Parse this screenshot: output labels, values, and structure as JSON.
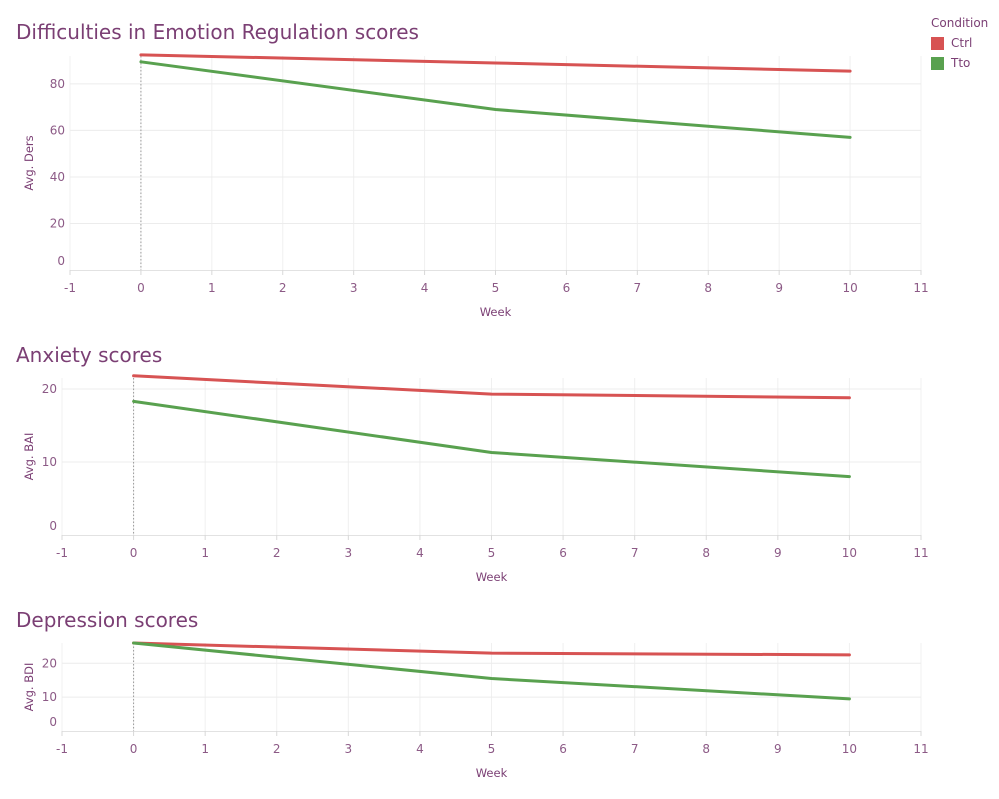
{
  "legend": {
    "title": "Condition",
    "items": [
      {
        "label": "Ctrl",
        "color": "#d75353"
      },
      {
        "label": "Tto",
        "color": "#59a14f"
      }
    ]
  },
  "chart_data": [
    {
      "type": "line",
      "title": "Difficulties in Emotion Regulation scores",
      "xlabel": "Week",
      "ylabel": "Avg. Ders",
      "xlim": [
        -1,
        11
      ],
      "ylim": [
        0,
        92
      ],
      "x_ticks": [
        -1,
        0,
        1,
        2,
        3,
        4,
        5,
        6,
        7,
        8,
        9,
        10,
        11
      ],
      "y_ticks": [
        0,
        20,
        40,
        60,
        80
      ],
      "grid": true,
      "reference_line_x": 0,
      "series": [
        {
          "name": "Ctrl",
          "color": "#d75353",
          "x": [
            0,
            5,
            10
          ],
          "y": [
            92.5,
            89,
            85.5
          ]
        },
        {
          "name": "Tto",
          "color": "#59a14f",
          "x": [
            0,
            5,
            10
          ],
          "y": [
            89.5,
            69,
            57
          ]
        }
      ]
    },
    {
      "type": "line",
      "title": "Anxiety scores",
      "xlabel": "Week",
      "ylabel": "Avg. BAI",
      "xlim": [
        -1,
        11
      ],
      "ylim": [
        0,
        21.5
      ],
      "x_ticks": [
        -1,
        0,
        1,
        2,
        3,
        4,
        5,
        6,
        7,
        8,
        9,
        10,
        11
      ],
      "y_ticks": [
        0,
        10,
        20
      ],
      "grid": true,
      "reference_line_x": 0,
      "series": [
        {
          "name": "Ctrl",
          "color": "#d75353",
          "x": [
            0,
            5,
            10
          ],
          "y": [
            21.8,
            19.3,
            18.8
          ]
        },
        {
          "name": "Tto",
          "color": "#59a14f",
          "x": [
            0,
            5,
            10
          ],
          "y": [
            18.3,
            11.3,
            8.0
          ]
        }
      ]
    },
    {
      "type": "line",
      "title": "Depression scores",
      "xlabel": "Week",
      "ylabel": "Avg. BDI",
      "xlim": [
        -1,
        11
      ],
      "ylim": [
        0,
        26
      ],
      "x_ticks": [
        -1,
        0,
        1,
        2,
        3,
        4,
        5,
        6,
        7,
        8,
        9,
        10,
        11
      ],
      "y_ticks": [
        0,
        10,
        20
      ],
      "grid": true,
      "reference_line_x": 0,
      "series": [
        {
          "name": "Ctrl",
          "color": "#d75353",
          "x": [
            0,
            5,
            10
          ],
          "y": [
            26.0,
            23.0,
            22.5
          ]
        },
        {
          "name": "Tto",
          "color": "#59a14f",
          "x": [
            0,
            5,
            10
          ],
          "y": [
            26.0,
            15.5,
            9.5
          ]
        }
      ]
    }
  ]
}
